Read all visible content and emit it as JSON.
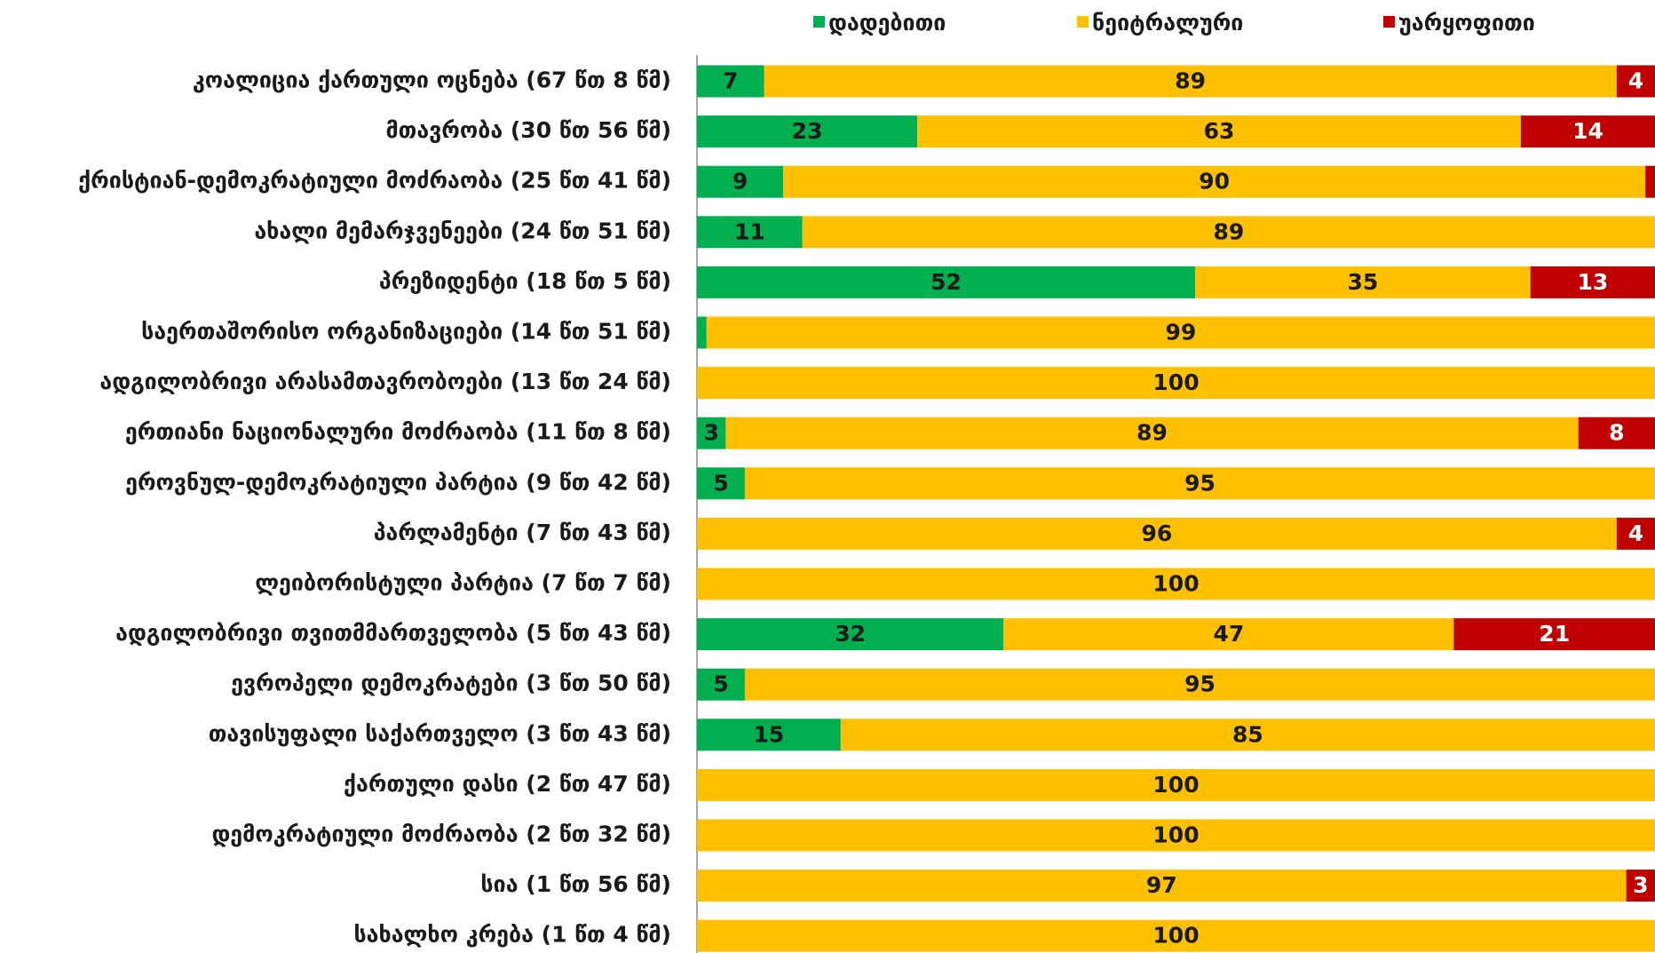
{
  "chart_data": {
    "type": "stacked-bar-horizontal",
    "categories": [
      "კოალიცია ქართული ოცნება (67 წთ 8 წმ)",
      "მთავრობა (30 წთ 56 წმ)",
      "ქრისტიან-დემოკრატიული მოძრაობა (25 წთ 41 წმ)",
      "ახალი მემარჯვენეები (24 წთ 51 წმ)",
      "პრეზიდენტი (18 წთ 5 წმ)",
      "საერთაშორისო ორგანიზაციები (14 წთ 51 წმ)",
      "ადგილობრივი არასამთავრობოები (13 წთ 24 წმ)",
      "ერთიანი ნაციონალური მოძრაობა (11 წთ 8 წმ)",
      "ეროვნულ-დემოკრატიული პარტია (9 წთ 42 წმ)",
      "პარლამენტი (7 წთ 43 წმ)",
      "ლეიბორისტული პარტია (7 წთ 7 წმ)",
      "ადგილობრივი თვითმმართველობა (5 წთ 43 წმ)",
      "ევროპელი დემოკრატები (3 წთ 50 წმ)",
      "თავისუფალი საქართველო (3 წთ 43 წმ)",
      "ქართული დასი (2 წთ 47 წმ)",
      "დემოკრატიული მოძრაობა (2 წთ 32 წმ)",
      "სია (1 წთ 56 წმ)",
      "სახალხო კრება (1 წთ 4 წმ)"
    ],
    "series": [
      {
        "name": "დადებითი",
        "color": "#00b050",
        "values": [
          7,
          23,
          9,
          11,
          52,
          1,
          0,
          3,
          5,
          0,
          0,
          32,
          5,
          15,
          0,
          0,
          0,
          0
        ]
      },
      {
        "name": "ნეიტრალური",
        "color": "#ffc000",
        "values": [
          89,
          63,
          90,
          89,
          35,
          99,
          100,
          89,
          95,
          96,
          100,
          47,
          95,
          85,
          100,
          100,
          97,
          100
        ]
      },
      {
        "name": "უარყოფითი",
        "color": "#c00000",
        "values": [
          4,
          14,
          1,
          0,
          13,
          0,
          0,
          8,
          0,
          4,
          0,
          21,
          0,
          0,
          0,
          0,
          3,
          0
        ]
      }
    ],
    "xlim": [
      0,
      100
    ]
  }
}
